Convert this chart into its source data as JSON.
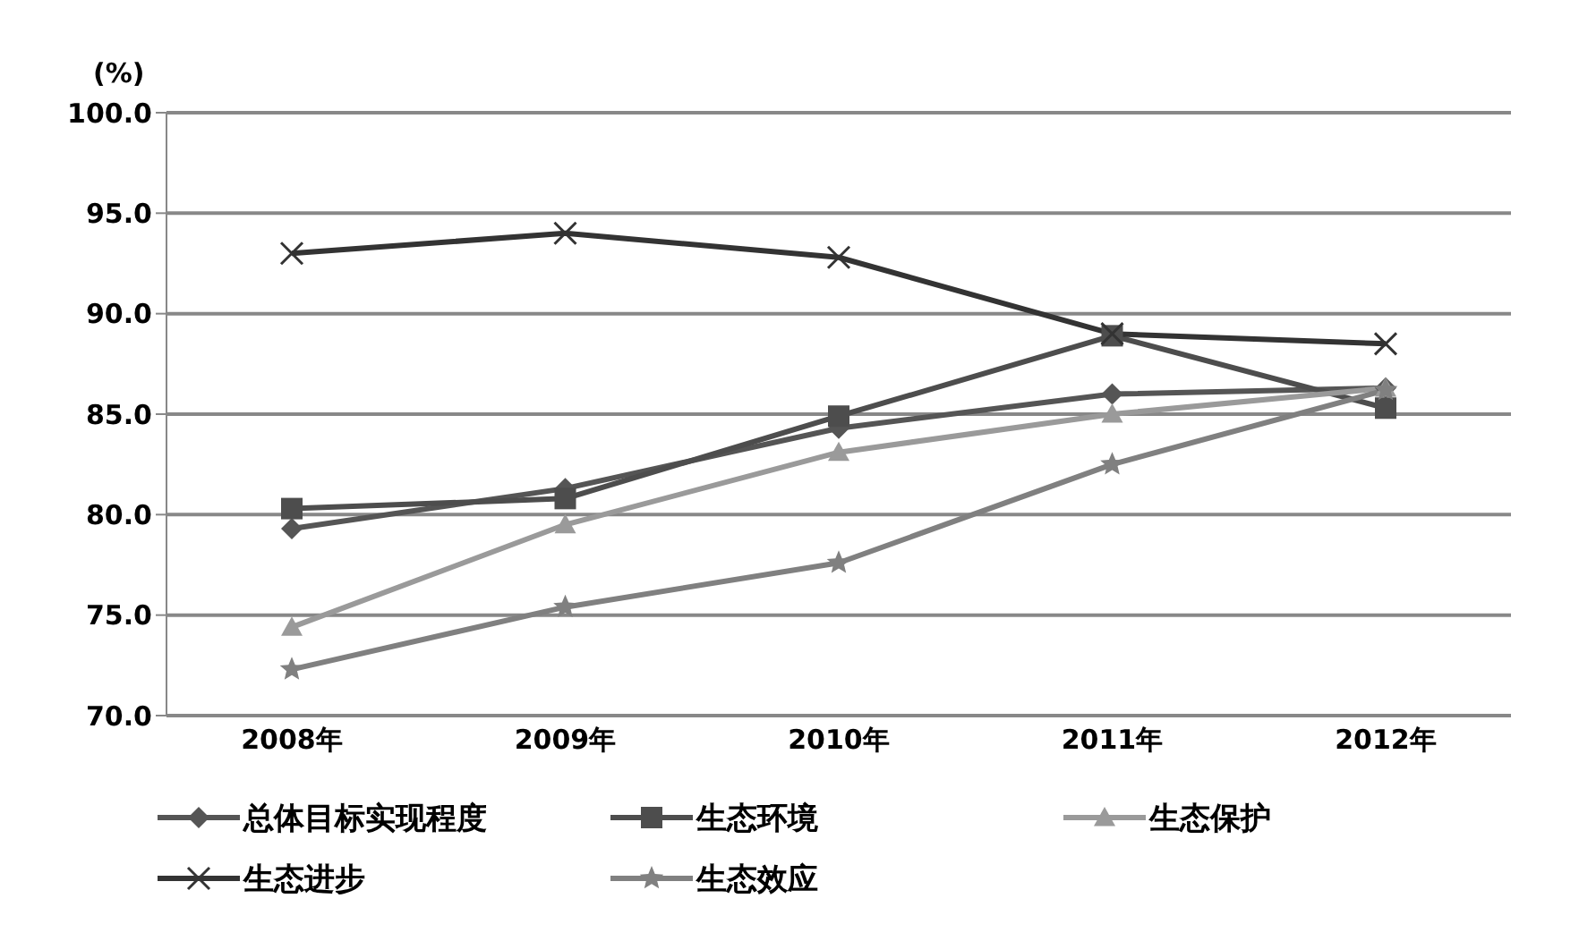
{
  "chart_data": {
    "type": "line",
    "ylabel": "(%)",
    "categories": [
      "2008年",
      "2009年",
      "2010年",
      "2011年",
      "2012年"
    ],
    "ylim": [
      70,
      100
    ],
    "yticks": [
      {
        "value": 70,
        "label": "70.0"
      },
      {
        "value": 75,
        "label": "75.0"
      },
      {
        "value": 80,
        "label": "80.0"
      },
      {
        "value": 85,
        "label": "85.0"
      },
      {
        "value": 90,
        "label": "90.0"
      },
      {
        "value": 95,
        "label": "95.0"
      },
      {
        "value": 100,
        "label": "100.0"
      }
    ],
    "grid": "y",
    "legend": "bottom",
    "line_style": "solid",
    "series": [
      {
        "name": "总体目标实现程度",
        "color": "#555555",
        "marker": "diamond",
        "values": [
          79.3,
          81.3,
          84.3,
          86.0,
          86.3
        ]
      },
      {
        "name": "生态环境",
        "color": "#4d4d4d",
        "marker": "square",
        "values": [
          80.3,
          80.8,
          84.9,
          88.9,
          85.3
        ]
      },
      {
        "name": "生态保护",
        "color": "#9a9a9a",
        "marker": "triangle",
        "values": [
          74.4,
          79.5,
          83.1,
          85.0,
          86.3
        ]
      },
      {
        "name": "生态进步",
        "color": "#333333",
        "marker": "cross",
        "values": [
          93.0,
          94.0,
          92.8,
          89.0,
          88.5
        ]
      },
      {
        "name": "生态效应",
        "color": "#808080",
        "marker": "star",
        "values": [
          72.3,
          75.4,
          77.6,
          82.5,
          86.2
        ]
      }
    ]
  }
}
